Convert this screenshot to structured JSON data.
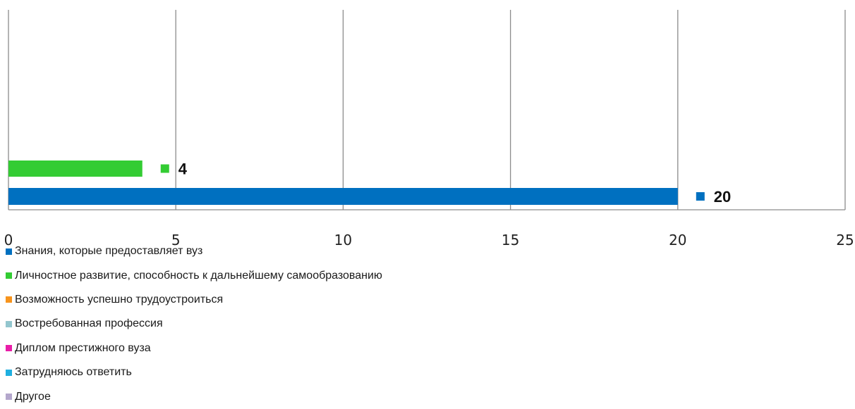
{
  "chart_data": {
    "type": "bar",
    "orientation": "horizontal",
    "grid": true,
    "xlim": [
      0,
      25
    ],
    "x_ticks": [
      "0",
      "5",
      "10",
      "15",
      "20",
      "25"
    ],
    "legend_position": "bottom-left",
    "series": [
      {
        "name": "Знания, которые предоставляет вуз",
        "value": 20,
        "label": "20",
        "color": "#0070C0"
      },
      {
        "name": "Личностное развитие, способность к дальнейшему самообразованию",
        "value": 4,
        "label": "4",
        "color": "#33CC33"
      }
    ],
    "legend": [
      {
        "label": "Знания, которые предоставляет вуз",
        "color": "#0070C0"
      },
      {
        "label": "Личностное развитие, способность к дальнейшему самообразованию",
        "color": "#33CC33"
      },
      {
        "label": "Возможность успешно трудоустроиться",
        "color": "#F7941D"
      },
      {
        "label": "Востребованная профессия",
        "color": "#93C6CE"
      },
      {
        "label": "Диплом престижного вуза",
        "color": "#E91EA8"
      },
      {
        "label": "Затрудняюсь ответить",
        "color": "#1FAFE0"
      },
      {
        "label": "Другое",
        "color": "#B4A7CC"
      }
    ]
  }
}
